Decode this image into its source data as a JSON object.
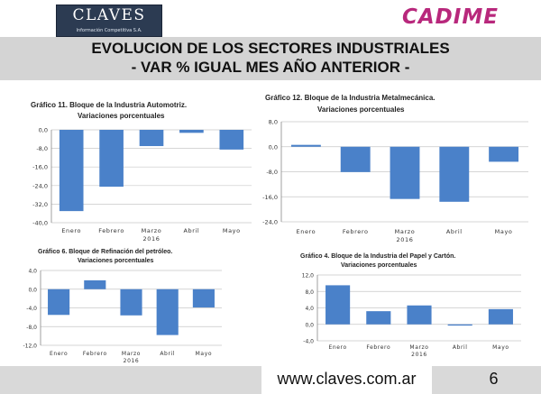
{
  "header": {
    "logo_left": {
      "word": "CLAVES",
      "subtitle": "Información Competitiva S.A."
    },
    "logo_right": "CADIME",
    "title_line1": "EVOLUCION DE LOS SECTORES INDUSTRIALES",
    "title_line2": "- VAR % IGUAL MES AÑO ANTERIOR -"
  },
  "footer": {
    "url": "www.claves.com.ar",
    "page": "6"
  },
  "colors": {
    "bar": "#4a81c9",
    "grid": "#c8c8c8",
    "title_band": "#d4d4d4",
    "cadime": "#b8287c"
  },
  "chart_data": [
    {
      "type": "bar",
      "title": "Gráfico 11. Bloque de la Industria Automotriz.",
      "subtitle": "Variaciones porcentuales",
      "categories": [
        "Enero",
        "Febrero",
        "Marzo\n2016",
        "Abril",
        "Mayo"
      ],
      "values": [
        -35.0,
        -24.5,
        -7.0,
        -1.3,
        -8.5
      ],
      "ylim": [
        -40.0,
        0.0
      ],
      "yticks": [
        0.0,
        -8.0,
        -16.0,
        -24.0,
        -32.0,
        -40.0
      ],
      "ytick_labels": [
        "0,0",
        "-8,0",
        "-16,0",
        "-24,0",
        "-32,0",
        "-40,0"
      ],
      "grid": true
    },
    {
      "type": "bar",
      "title": "Gráfico 12. Bloque de la Industria Metalmecánica.",
      "subtitle": "Variaciones porcentuales",
      "categories": [
        "Enero",
        "Febrero",
        "Marzo\n2016",
        "Abril",
        "Mayo"
      ],
      "values": [
        0.6,
        -8.1,
        -16.7,
        -17.6,
        -4.8
      ],
      "ylim": [
        -24.0,
        8.0
      ],
      "yticks": [
        8.0,
        0.0,
        -8.0,
        -16.0,
        -24.0
      ],
      "ytick_labels": [
        "8,0",
        "0,0",
        "-8,0",
        "-16,0",
        "-24,0"
      ],
      "grid": true
    },
    {
      "type": "bar",
      "title": "Gráfico 6. Bloque de Refinación del petróleo.",
      "subtitle": "Variaciones porcentuales",
      "categories": [
        "Enero",
        "Febrero",
        "Marzo\n2016",
        "Abril",
        "Mayo"
      ],
      "values": [
        -5.5,
        1.9,
        -5.6,
        -9.8,
        -3.9
      ],
      "ylim": [
        -12.0,
        4.0
      ],
      "yticks": [
        4.0,
        0.0,
        -4.0,
        -8.0,
        -12.0
      ],
      "ytick_labels": [
        "4,0",
        "0,0",
        "-4,0",
        "-8,0",
        "-12,0"
      ],
      "grid": true
    },
    {
      "type": "bar",
      "title": "Gráfico 4. Bloque de la Industria del Papel y Cartón.",
      "subtitle": "Variaciones porcentuales",
      "categories": [
        "Enero",
        "Febrero",
        "Marzo\n2016",
        "Abril",
        "Mayo"
      ],
      "values": [
        9.5,
        3.2,
        4.6,
        -0.3,
        3.7
      ],
      "ylim": [
        -4.0,
        12.0
      ],
      "yticks": [
        12.0,
        8.0,
        4.0,
        0.0,
        -4.0
      ],
      "ytick_labels": [
        "12,0",
        "8,0",
        "4,0",
        "0,0",
        "-4,0"
      ],
      "grid": true
    }
  ]
}
